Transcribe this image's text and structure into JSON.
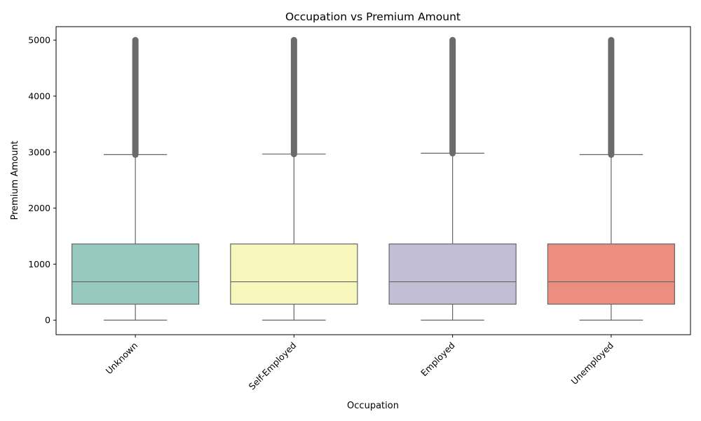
{
  "chart_data": {
    "type": "box",
    "title": "Occupation vs Premium Amount",
    "xlabel": "Occupation",
    "ylabel": "Premium Amount",
    "ylim": [
      -260,
      5240
    ],
    "yticks": [
      0,
      1000,
      2000,
      3000,
      4000,
      5000
    ],
    "grid": false,
    "categories": [
      "Unknown",
      "Self-Employed",
      "Employed",
      "Unemployed"
    ],
    "boxes": [
      {
        "category": "Unknown",
        "color": "#96c9bf",
        "whisker_low": 0,
        "q1": 285,
        "median": 685,
        "q3": 1360,
        "whisker_high": 2955,
        "outliers_from": 2955,
        "outliers_to": 5000
      },
      {
        "category": "Self-Employed",
        "color": "#f7f7bb",
        "whisker_low": 0,
        "q1": 285,
        "median": 685,
        "q3": 1360,
        "whisker_high": 2965,
        "outliers_from": 2965,
        "outliers_to": 5000
      },
      {
        "category": "Employed",
        "color": "#c2bed6",
        "whisker_low": 0,
        "q1": 285,
        "median": 685,
        "q3": 1360,
        "whisker_high": 2980,
        "outliers_from": 2980,
        "outliers_to": 5000
      },
      {
        "category": "Unemployed",
        "color": "#eb8d80",
        "whisker_low": 0,
        "q1": 285,
        "median": 685,
        "q3": 1360,
        "whisker_high": 2955,
        "outliers_from": 2955,
        "outliers_to": 5000
      }
    ],
    "line_color": "#666666",
    "outlier_color": "#6b6b6b"
  }
}
